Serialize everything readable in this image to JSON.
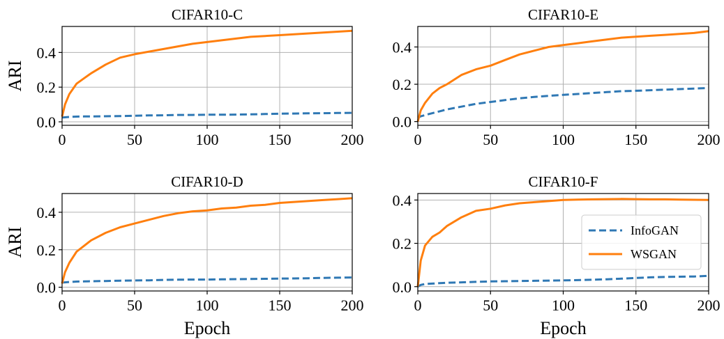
{
  "colors": {
    "infogan": "#2f78b4",
    "wsgan": "#ff7f0e",
    "grid": "#b0b0b0",
    "axis": "#000000"
  },
  "legend": {
    "entries": [
      "InfoGAN",
      "WSGAN"
    ]
  },
  "chart_data": [
    {
      "type": "line",
      "title": "CIFAR10-C",
      "ylabel": "ARI",
      "xlabel": "",
      "xlim": [
        0,
        200
      ],
      "ylim": [
        -0.02,
        0.55
      ],
      "xticks": [
        "0",
        "50",
        "100",
        "150",
        "200"
      ],
      "yticks": [
        "0.0",
        "0.2",
        "0.4"
      ],
      "grid": true,
      "x": [
        0,
        2,
        5,
        10,
        15,
        20,
        30,
        40,
        50,
        60,
        70,
        80,
        90,
        100,
        110,
        120,
        130,
        140,
        150,
        160,
        170,
        180,
        190,
        200
      ],
      "series": [
        {
          "name": "InfoGAN",
          "style": "dashed",
          "values": [
            0.025,
            0.026,
            0.028,
            0.03,
            0.031,
            0.031,
            0.032,
            0.033,
            0.035,
            0.037,
            0.038,
            0.04,
            0.04,
            0.041,
            0.041,
            0.042,
            0.043,
            0.045,
            0.047,
            0.048,
            0.049,
            0.05,
            0.051,
            0.052
          ]
        },
        {
          "name": "WSGAN",
          "style": "solid",
          "values": [
            0.03,
            0.1,
            0.16,
            0.22,
            0.25,
            0.28,
            0.33,
            0.37,
            0.39,
            0.405,
            0.42,
            0.435,
            0.45,
            0.46,
            0.47,
            0.48,
            0.49,
            0.495,
            0.5,
            0.505,
            0.51,
            0.515,
            0.52,
            0.525
          ]
        }
      ]
    },
    {
      "type": "line",
      "title": "CIFAR10-E",
      "ylabel": "",
      "xlabel": "",
      "xlim": [
        0,
        200
      ],
      "ylim": [
        -0.02,
        0.51
      ],
      "xticks": [
        "0",
        "50",
        "100",
        "150",
        "200"
      ],
      "yticks": [
        "0.0",
        "0.2",
        "0.4"
      ],
      "grid": true,
      "x": [
        0,
        2,
        5,
        10,
        15,
        20,
        30,
        40,
        50,
        60,
        70,
        80,
        90,
        100,
        110,
        120,
        130,
        140,
        150,
        160,
        170,
        180,
        190,
        200
      ],
      "series": [
        {
          "name": "InfoGAN",
          "style": "dashed",
          "values": [
            0.02,
            0.028,
            0.035,
            0.045,
            0.055,
            0.065,
            0.08,
            0.095,
            0.105,
            0.115,
            0.125,
            0.132,
            0.138,
            0.143,
            0.148,
            0.153,
            0.158,
            0.163,
            0.165,
            0.168,
            0.171,
            0.174,
            0.177,
            0.18
          ]
        },
        {
          "name": "WSGAN",
          "style": "solid",
          "values": [
            0.0,
            0.06,
            0.1,
            0.15,
            0.18,
            0.2,
            0.25,
            0.28,
            0.3,
            0.33,
            0.36,
            0.38,
            0.4,
            0.41,
            0.42,
            0.43,
            0.44,
            0.45,
            0.455,
            0.46,
            0.465,
            0.47,
            0.475,
            0.485
          ]
        }
      ]
    },
    {
      "type": "line",
      "title": "CIFAR10-D",
      "ylabel": "ARI",
      "xlabel": "Epoch",
      "xlim": [
        0,
        200
      ],
      "ylim": [
        -0.02,
        0.5
      ],
      "xticks": [
        "0",
        "50",
        "100",
        "150",
        "200"
      ],
      "yticks": [
        "0.0",
        "0.2",
        "0.4"
      ],
      "grid": true,
      "x": [
        0,
        2,
        5,
        10,
        15,
        20,
        30,
        40,
        50,
        60,
        70,
        80,
        90,
        100,
        110,
        120,
        130,
        140,
        150,
        160,
        170,
        180,
        190,
        200
      ],
      "series": [
        {
          "name": "InfoGAN",
          "style": "dashed",
          "values": [
            0.025,
            0.026,
            0.028,
            0.03,
            0.031,
            0.032,
            0.033,
            0.035,
            0.036,
            0.037,
            0.039,
            0.04,
            0.041,
            0.041,
            0.042,
            0.043,
            0.044,
            0.045,
            0.046,
            0.047,
            0.048,
            0.05,
            0.051,
            0.052
          ]
        },
        {
          "name": "WSGAN",
          "style": "solid",
          "values": [
            0.02,
            0.08,
            0.13,
            0.19,
            0.22,
            0.25,
            0.29,
            0.32,
            0.34,
            0.36,
            0.38,
            0.395,
            0.405,
            0.41,
            0.42,
            0.425,
            0.435,
            0.44,
            0.45,
            0.455,
            0.46,
            0.465,
            0.47,
            0.475
          ]
        }
      ]
    },
    {
      "type": "line",
      "title": "CIFAR10-F",
      "ylabel": "",
      "xlabel": "Epoch",
      "xlim": [
        0,
        200
      ],
      "ylim": [
        -0.02,
        0.43
      ],
      "xticks": [
        "0",
        "50",
        "100",
        "150",
        "200"
      ],
      "yticks": [
        "0.0",
        "0.2",
        "0.4"
      ],
      "grid": true,
      "legend": "center-right",
      "x": [
        0,
        2,
        5,
        10,
        15,
        20,
        30,
        40,
        50,
        60,
        70,
        80,
        90,
        100,
        110,
        120,
        130,
        140,
        150,
        160,
        170,
        180,
        190,
        200
      ],
      "series": [
        {
          "name": "InfoGAN",
          "style": "dashed",
          "values": [
            0.0,
            0.008,
            0.012,
            0.014,
            0.016,
            0.018,
            0.02,
            0.022,
            0.024,
            0.025,
            0.026,
            0.027,
            0.028,
            0.029,
            0.03,
            0.032,
            0.034,
            0.037,
            0.04,
            0.043,
            0.045,
            0.046,
            0.047,
            0.05
          ]
        },
        {
          "name": "WSGAN",
          "style": "solid",
          "values": [
            0.0,
            0.12,
            0.19,
            0.23,
            0.25,
            0.28,
            0.32,
            0.35,
            0.36,
            0.375,
            0.385,
            0.39,
            0.395,
            0.4,
            0.402,
            0.403,
            0.404,
            0.405,
            0.404,
            0.403,
            0.403,
            0.402,
            0.401,
            0.4
          ]
        }
      ]
    }
  ]
}
